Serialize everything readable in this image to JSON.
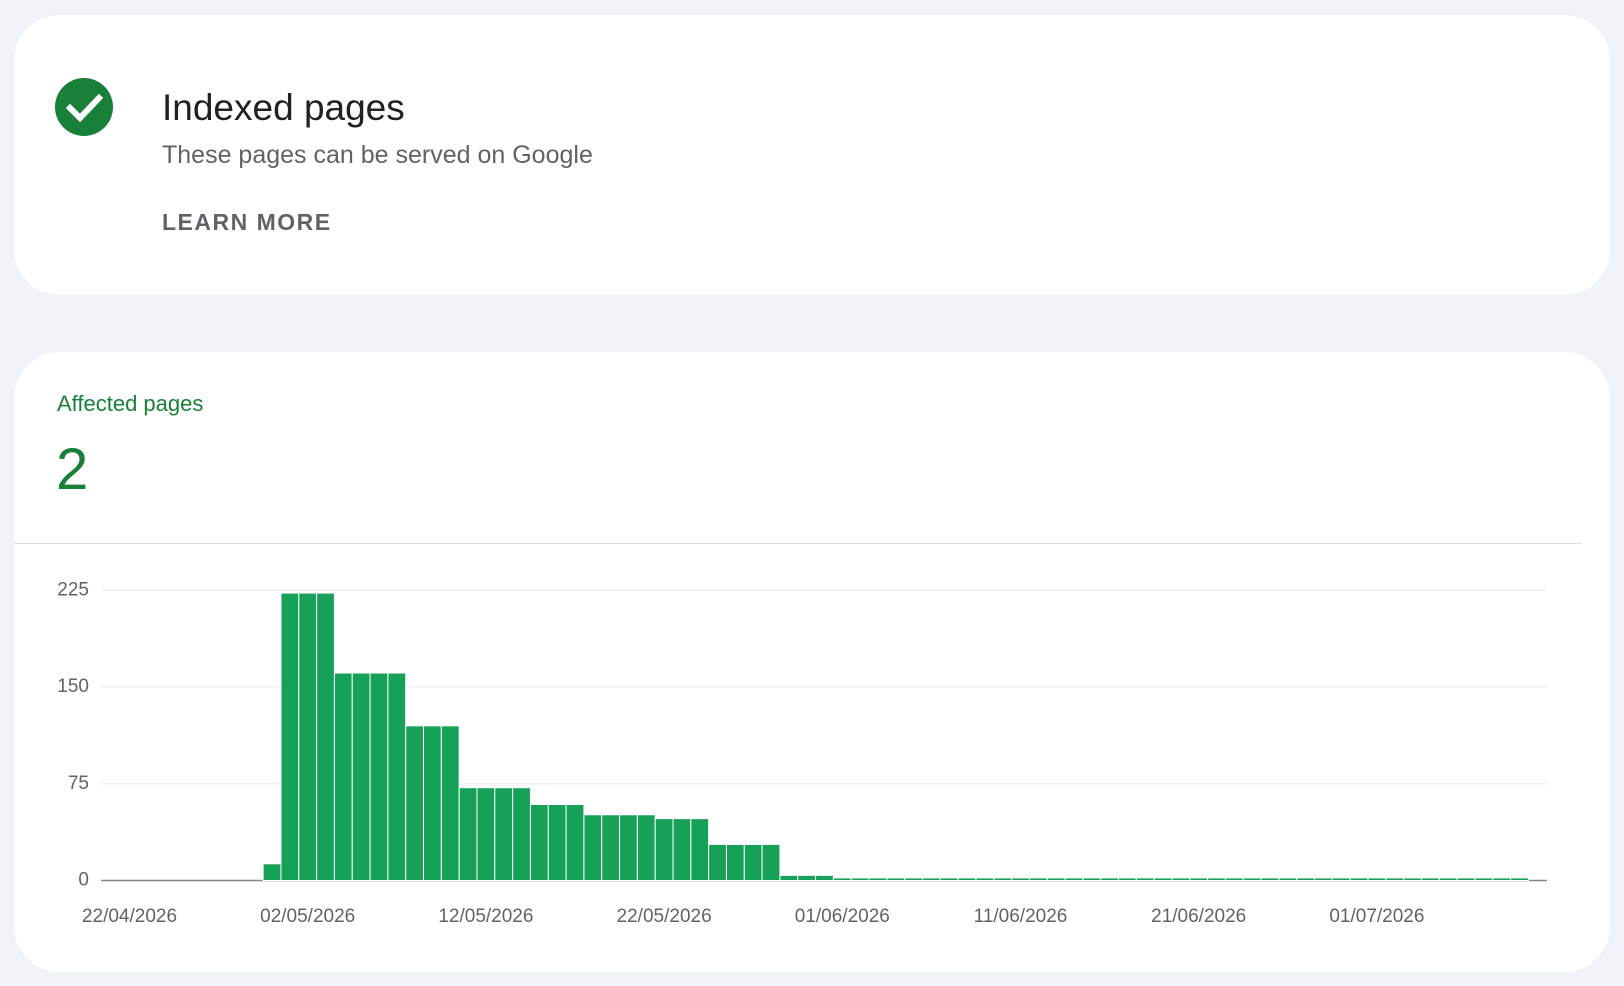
{
  "header": {
    "title": "Indexed pages",
    "subtitle": "These pages can be served on Google",
    "button": "LEARN MORE"
  },
  "summary": {
    "label": "Affected pages",
    "value": "2"
  },
  "chart_data": {
    "type": "bar",
    "color": "#17a158",
    "categories": [
      "22/04/2026",
      null,
      null,
      null,
      null,
      null,
      null,
      null,
      null,
      null,
      "02/05/2026",
      null,
      null,
      null,
      null,
      null,
      null,
      null,
      null,
      null,
      "12/05/2026",
      null,
      null,
      null,
      null,
      null,
      null,
      null,
      null,
      null,
      "22/05/2026",
      null,
      null,
      null,
      null,
      null,
      null,
      null,
      null,
      null,
      "01/06/2026",
      null,
      null,
      null,
      null,
      null,
      null,
      null,
      null,
      null,
      "11/06/2026",
      null,
      null,
      null,
      null,
      null,
      null,
      null,
      null,
      null,
      "21/06/2026",
      null,
      null,
      null,
      null,
      null,
      null,
      null,
      null,
      null,
      "01/07/2026",
      null,
      null,
      null,
      null,
      null,
      null,
      null,
      null
    ],
    "values": [
      null,
      null,
      null,
      null,
      null,
      null,
      null,
      null,
      13,
      223,
      223,
      223,
      161,
      161,
      161,
      161,
      120,
      120,
      120,
      72,
      72,
      72,
      72,
      59,
      59,
      59,
      51,
      51,
      51,
      51,
      48,
      48,
      48,
      28,
      28,
      28,
      28,
      4,
      4,
      4,
      2,
      2,
      2,
      2,
      2,
      2,
      2,
      2,
      2,
      2,
      2,
      2,
      2,
      2,
      2,
      2,
      2,
      2,
      2,
      2,
      2,
      2,
      2,
      2,
      2,
      2,
      2,
      2,
      2,
      2,
      2,
      2,
      2,
      2,
      2,
      2,
      2,
      2,
      2
    ],
    "ylim": [
      0,
      225
    ],
    "yticks": [
      0,
      75,
      150,
      225
    ],
    "grid": true
  }
}
